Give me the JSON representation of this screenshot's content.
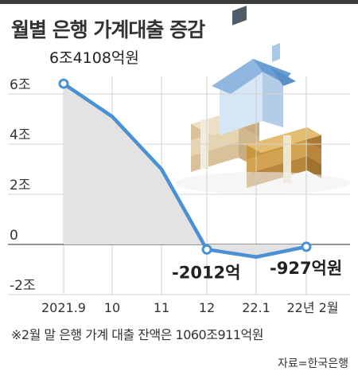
{
  "title": "월별 은행 가계대출 증감",
  "chart_data": {
    "type": "line",
    "categories": [
      "2021.9",
      "10",
      "11",
      "12",
      "22.1",
      "22년 2월"
    ],
    "values": [
      6.41,
      5.1,
      3.0,
      -0.2012,
      -0.5,
      -0.0927
    ],
    "y_ticks": [
      6,
      4,
      2,
      0,
      -2
    ],
    "y_tick_labels": [
      "6조",
      "4조",
      "2조",
      "0",
      "-2조"
    ],
    "ylim": [
      -2,
      6
    ],
    "annotations": [
      {
        "index": 0,
        "text": "6조4108억원"
      },
      {
        "index": 3,
        "text": "-2012억"
      },
      {
        "index": 5,
        "text": "-927억원"
      }
    ],
    "line_color": "#4a90d4",
    "area_color": "#e3e3e3"
  },
  "note": "※2월 말 은행 가계 대출 잔액은 1060조911억원",
  "source": "자료=한국은행"
}
